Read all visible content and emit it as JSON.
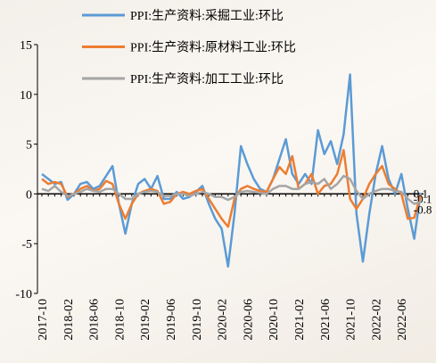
{
  "chart_data": {
    "type": "line",
    "categories": [
      "2017-10",
      null,
      null,
      null,
      "2018-02",
      null,
      null,
      null,
      "2018-06",
      null,
      null,
      null,
      "2018-10",
      null,
      null,
      null,
      "2019-02",
      null,
      null,
      null,
      "2019-06",
      null,
      null,
      null,
      "2019-10",
      null,
      null,
      null,
      "2020-02",
      null,
      null,
      null,
      "2020-06",
      null,
      null,
      null,
      "2020-10",
      null,
      null,
      null,
      "2021-02",
      null,
      null,
      null,
      "2021-06",
      null,
      null,
      null,
      "2021-10",
      null,
      null,
      null,
      "2022-02",
      null,
      null,
      null,
      "2022-06",
      null,
      null,
      null
    ],
    "series": [
      {
        "name": "PPI:生产资料:采掘工业:环比",
        "color": "#5b9bd5",
        "values": [
          2.0,
          1.5,
          1.0,
          1.2,
          -0.6,
          0,
          1.0,
          1.2,
          0.5,
          0.8,
          1.8,
          2.8,
          -1.0,
          -4.0,
          -1.0,
          1.0,
          1.5,
          0.5,
          1.8,
          -0.5,
          -0.5,
          0.2,
          -0.5,
          -0.3,
          0.2,
          0.8,
          -1.0,
          -2.5,
          -3.5,
          -7.3,
          -2.0,
          4.8,
          3.0,
          1.5,
          0.5,
          0.2,
          1.5,
          3.5,
          5.5,
          2.0,
          1.0,
          2.0,
          1.0,
          6.4,
          4.0,
          5.3,
          3.0,
          6.0,
          12.0,
          -2.0,
          -6.8,
          -2.0,
          2.0,
          4.8,
          1.5,
          0.0,
          2.0,
          -1.5,
          -4.5,
          0.1
        ]
      },
      {
        "name": "PPI:生产资料:原材料工业:环比",
        "color": "#ed7d31",
        "values": [
          1.5,
          1.0,
          1.2,
          1.0,
          -0.3,
          0,
          0.5,
          0.8,
          0.3,
          0.5,
          1.3,
          1.0,
          -1.0,
          -2.5,
          -1.0,
          0,
          0.3,
          0.5,
          0.3,
          -1.0,
          -0.8,
          0,
          0.2,
          0,
          0.3,
          0.5,
          -0.5,
          -1.5,
          -2.5,
          -3.3,
          -0.5,
          0.5,
          0.8,
          0.5,
          0.3,
          0.2,
          1.5,
          2.7,
          2.0,
          3.8,
          0.5,
          1.0,
          2.0,
          0,
          0.8,
          1.0,
          2.0,
          4.4,
          -0.5,
          -1.5,
          -0.5,
          1.0,
          2.0,
          2.8,
          1.0,
          0.5,
          0.0,
          -2.5,
          -2.4,
          -0.1
        ]
      },
      {
        "name": "PPI:生产资料:加工工业:环比",
        "color": "#a5a5a5",
        "values": [
          0.5,
          0.3,
          0.8,
          0.2,
          -0.2,
          0,
          0.2,
          0.5,
          0.3,
          0.2,
          0.5,
          0.5,
          0,
          -0.5,
          -0.5,
          0,
          0.2,
          0.3,
          0.2,
          -0.2,
          -0.2,
          0,
          0,
          -0.2,
          0,
          0.2,
          0,
          -0.3,
          -0.3,
          -0.6,
          -0.3,
          0.2,
          0.3,
          0.2,
          0.1,
          0,
          0.5,
          0.8,
          0.8,
          0.5,
          0.5,
          1.0,
          1.2,
          1.0,
          1.5,
          0.5,
          1.0,
          1.8,
          1.5,
          0.3,
          -0.5,
          0,
          0.3,
          0.5,
          0.5,
          0.3,
          0.2,
          -0.5,
          -1.0,
          -0.8
        ]
      }
    ],
    "ylim": [
      -10,
      15
    ],
    "yticks": [
      -10,
      -5,
      0,
      5,
      10,
      15
    ],
    "label_last": true,
    "legend": "top"
  }
}
